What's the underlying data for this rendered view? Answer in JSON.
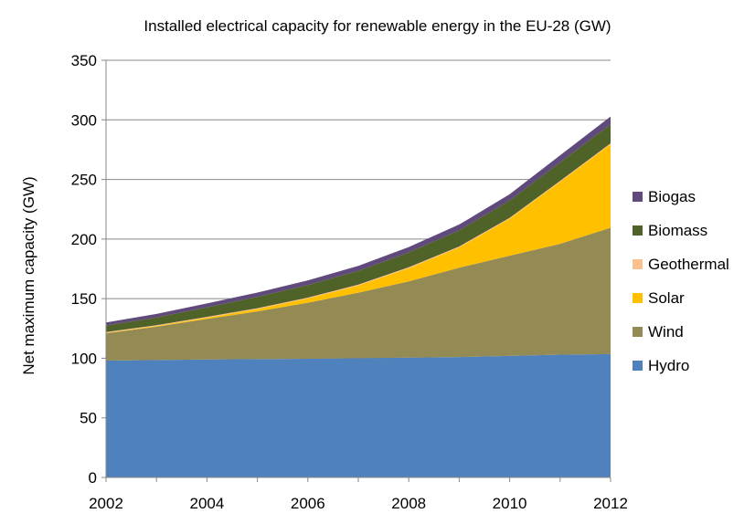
{
  "chart_data": {
    "type": "area",
    "stacked": true,
    "title": "Installed electrical capacity for renewable energy in the EU-28 (GW)",
    "xlabel": "",
    "ylabel": "Net maximum capacity (GW)",
    "x": [
      2002,
      2003,
      2004,
      2005,
      2006,
      2007,
      2008,
      2009,
      2010,
      2011,
      2012
    ],
    "xticks": [
      2002,
      2004,
      2006,
      2008,
      2010,
      2012
    ],
    "xlim": [
      2002,
      2012
    ],
    "ylim": [
      0,
      350
    ],
    "yticks": [
      0,
      50,
      100,
      150,
      200,
      250,
      300,
      350
    ],
    "grid": "horizontal",
    "legend_position": "right",
    "series": [
      {
        "name": "Hydro",
        "color": "#4f81bd",
        "values": [
          98,
          98.5,
          99,
          99.3,
          99.6,
          100,
          100.5,
          101,
          102,
          103,
          103.5
        ]
      },
      {
        "name": "Wind",
        "color": "#948a54",
        "values": [
          23,
          28,
          34,
          40,
          47,
          55,
          64,
          75,
          84,
          93,
          106
        ]
      },
      {
        "name": "Solar",
        "color": "#ffc000",
        "values": [
          0.3,
          0.5,
          1,
          2,
          3.5,
          6,
          11,
          17,
          31,
          52,
          70
        ]
      },
      {
        "name": "Geothermal",
        "color": "#fac090",
        "values": [
          0.7,
          0.7,
          0.7,
          0.7,
          0.8,
          0.8,
          0.8,
          0.8,
          0.8,
          0.8,
          0.8
        ]
      },
      {
        "name": "Biomass",
        "color": "#4f6228",
        "values": [
          5.5,
          6.5,
          8,
          9.5,
          10.5,
          11.5,
          12.5,
          13.5,
          14.5,
          15.5,
          16
        ]
      },
      {
        "name": "Biogas",
        "color": "#604a7b",
        "values": [
          2.5,
          3,
          3.3,
          3.6,
          3.9,
          4.2,
          4.5,
          4.9,
          5.3,
          6,
          6.5
        ]
      }
    ],
    "legend_order": [
      "Biogas",
      "Biomass",
      "Geothermal",
      "Solar",
      "Wind",
      "Hydro"
    ]
  }
}
